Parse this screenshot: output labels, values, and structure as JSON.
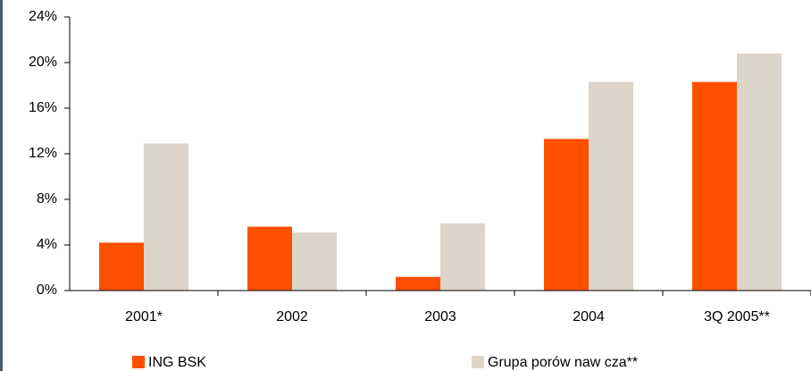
{
  "chart_data": {
    "type": "bar",
    "categories": [
      "2001*",
      "2002",
      "2003",
      "2004",
      "3Q 2005**"
    ],
    "series": [
      {
        "name": "ING BSK",
        "color": "#ff5000",
        "values": [
          4.2,
          5.6,
          1.2,
          13.3,
          18.3
        ]
      },
      {
        "name": "Grupa porów naw cza**",
        "color": "#ddd4ca",
        "values": [
          12.9,
          5.1,
          5.9,
          18.3,
          20.8
        ]
      }
    ],
    "ylim": [
      0,
      24
    ],
    "yticks": [
      {
        "value": 0,
        "label": "0%"
      },
      {
        "value": 4,
        "label": "4%"
      },
      {
        "value": 8,
        "label": "8%"
      },
      {
        "value": 12,
        "label": "12%"
      },
      {
        "value": 16,
        "label": "16%"
      },
      {
        "value": 20,
        "label": "20%"
      },
      {
        "value": 24,
        "label": "24%"
      }
    ],
    "legend": "bottom"
  }
}
